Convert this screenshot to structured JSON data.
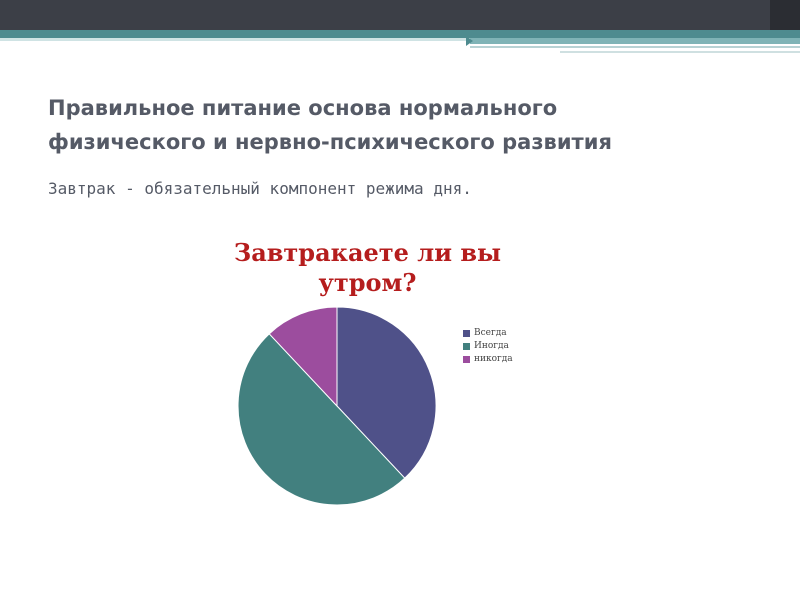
{
  "slide": {
    "title_line1": "Правильное питание основа нормального",
    "title_line2": "физического и нервно-психического развития",
    "subtitle": "Завтрак - обязательный компонент режима дня."
  },
  "chart_data": {
    "type": "pie",
    "title": "Завтракаете ли вы утром?",
    "categories": [
      "Всегда",
      "Иногда",
      "никогда"
    ],
    "values": [
      38,
      50,
      12
    ],
    "colors": [
      "#4f5189",
      "#42807f",
      "#9c4d9e"
    ],
    "legend_position": "right"
  }
}
